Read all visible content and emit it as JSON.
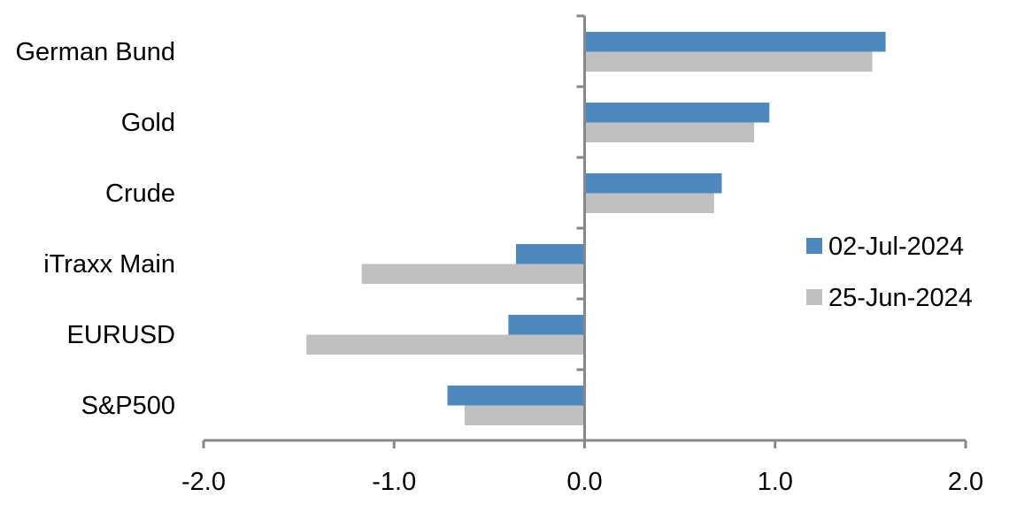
{
  "chart_data": {
    "type": "bar",
    "orientation": "horizontal",
    "categories": [
      "German Bund",
      "Gold",
      "Crude",
      "iTraxx Main",
      "EURUSD",
      "S&P500"
    ],
    "series": [
      {
        "name": "02-Jul-2024",
        "color": "#4f88bd",
        "values": [
          1.58,
          0.97,
          0.72,
          -0.36,
          -0.4,
          -0.72
        ]
      },
      {
        "name": "25-Jun-2024",
        "color": "#c0c0c0",
        "values": [
          1.51,
          0.89,
          0.68,
          -1.17,
          -1.46,
          -0.63
        ]
      }
    ],
    "xlim": [
      -2.0,
      2.0
    ],
    "xticks": [
      "-2.0",
      "-1.0",
      "0.0",
      "1.0",
      "2.0"
    ],
    "title": "",
    "xlabel": "",
    "ylabel": "",
    "grid": false,
    "legend_position": "right"
  }
}
